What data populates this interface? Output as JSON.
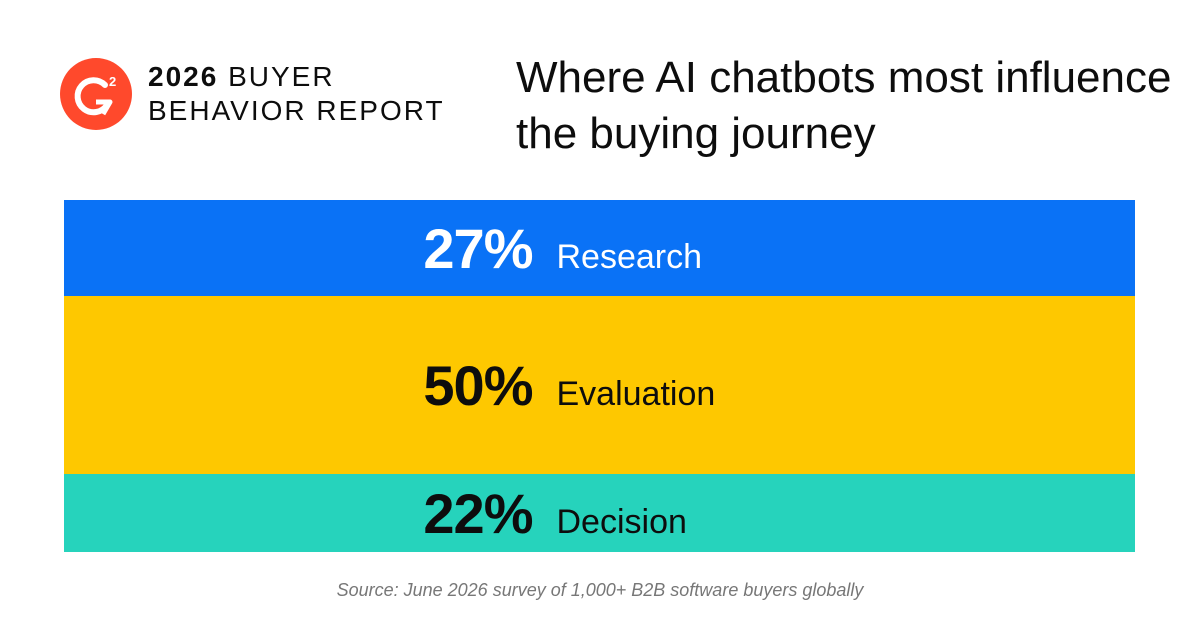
{
  "brand": {
    "logo_mark": "G",
    "logo_superscript": "2",
    "logo_color": "#ff492c",
    "report_line1_bold": "2026",
    "report_line1_rest": "BUYER",
    "report_line2": "BEHAVIOR REPORT"
  },
  "headline": "Where AI chatbots most influence the buying journey",
  "chart_data": {
    "type": "bar",
    "orientation": "stacked-horizontal-bands",
    "title": "Where AI chatbots most influence the buying journey",
    "unit": "%",
    "categories": [
      "Research",
      "Evaluation",
      "Decision"
    ],
    "values": [
      27,
      50,
      22
    ],
    "value_labels": [
      "27%",
      "50%",
      "22%"
    ],
    "colors": [
      "#0a72f6",
      "#fec800",
      "#26d3bc"
    ],
    "text_colors": [
      "#ffffff",
      "#0d0d0d",
      "#0d0d0d"
    ],
    "grid": false,
    "legend": "none"
  },
  "source": "Source: June 2026 survey of 1,000+ B2B software buyers globally"
}
